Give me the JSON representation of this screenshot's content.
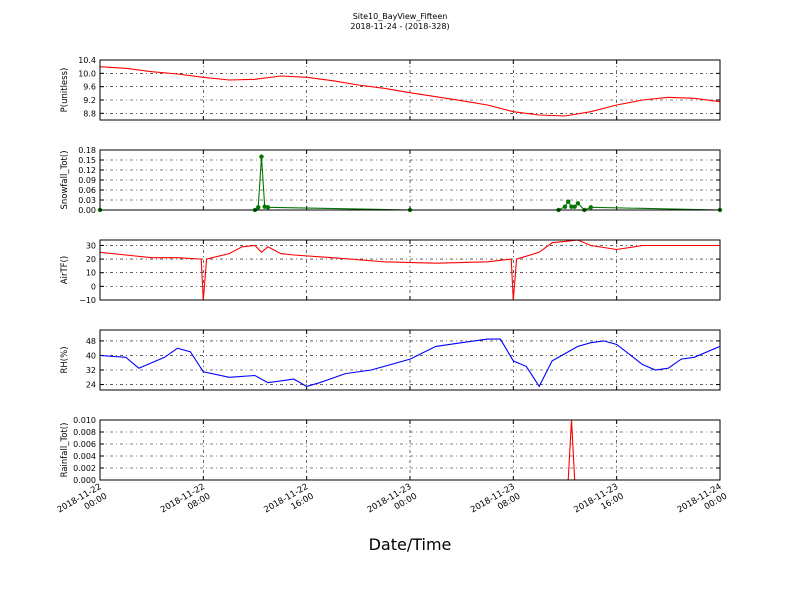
{
  "title": "Site10_BayView_Fifteen",
  "subtitle": "2018-11-24 - (2018-328)",
  "xlabel": "Date/Time",
  "x_ticks": [
    {
      "line1": "2018-11-22",
      "line2": "00:00"
    },
    {
      "line1": "2018-11-22",
      "line2": "08:00"
    },
    {
      "line1": "2018-11-22",
      "line2": "16:00"
    },
    {
      "line1": "2018-11-23",
      "line2": "00:00"
    },
    {
      "line1": "2018-11-23",
      "line2": "08:00"
    },
    {
      "line1": "2018-11-23",
      "line2": "16:00"
    },
    {
      "line1": "2018-11-24",
      "line2": "00:00"
    }
  ],
  "chart_data": [
    {
      "type": "line",
      "ylabel": "P(unitless)",
      "color": "#ff0000",
      "marker": false,
      "ylim": [
        8.6,
        10.4
      ],
      "yticks": [
        "8.8",
        "9.2",
        "9.6",
        "10.0",
        "10.4"
      ],
      "x": [
        "2018-11-22 00:00",
        "2018-11-22 02:00",
        "2018-11-22 04:00",
        "2018-11-22 06:00",
        "2018-11-22 08:00",
        "2018-11-22 10:00",
        "2018-11-22 12:00",
        "2018-11-22 14:00",
        "2018-11-22 16:00",
        "2018-11-22 18:00",
        "2018-11-22 20:00",
        "2018-11-22 22:00",
        "2018-11-23 00:00",
        "2018-11-23 02:00",
        "2018-11-23 04:00",
        "2018-11-23 06:00",
        "2018-11-23 08:00",
        "2018-11-23 10:00",
        "2018-11-23 12:00",
        "2018-11-23 14:00",
        "2018-11-23 16:00",
        "2018-11-23 18:00",
        "2018-11-23 20:00",
        "2018-11-23 22:00",
        "2018-11-24 00:00"
      ],
      "y": [
        10.2,
        10.15,
        10.05,
        9.98,
        9.88,
        9.8,
        9.82,
        9.92,
        9.88,
        9.78,
        9.65,
        9.55,
        9.42,
        9.3,
        9.18,
        9.05,
        8.85,
        8.75,
        8.72,
        8.85,
        9.05,
        9.2,
        9.28,
        9.25,
        9.15
      ]
    },
    {
      "type": "line",
      "ylabel": "Snowfall_Tot()",
      "color": "#007700",
      "marker": true,
      "ylim": [
        0,
        0.18
      ],
      "yticks": [
        "0.00",
        "0.03",
        "0.06",
        "0.09",
        "0.12",
        "0.15",
        "0.18"
      ],
      "x": [
        "2018-11-22 00:00",
        "2018-11-22 12:00",
        "2018-11-22 12:15",
        "2018-11-22 12:30",
        "2018-11-22 12:45",
        "2018-11-22 13:00",
        "2018-11-23 00:00",
        "2018-11-23 11:30",
        "2018-11-23 12:00",
        "2018-11-23 12:15",
        "2018-11-23 12:30",
        "2018-11-23 12:45",
        "2018-11-23 13:00",
        "2018-11-23 13:30",
        "2018-11-23 14:00",
        "2018-11-24 00:00"
      ],
      "y": [
        0,
        0,
        0.008,
        0.16,
        0.01,
        0.008,
        0,
        0,
        0.01,
        0.025,
        0.01,
        0.01,
        0.02,
        0,
        0.008,
        0
      ]
    },
    {
      "type": "line",
      "ylabel": "AirTF()",
      "color": "#ff0000",
      "marker": false,
      "ylim": [
        -10,
        34
      ],
      "yticks": [
        "−10",
        "0",
        "10",
        "20",
        "30"
      ],
      "x": [
        "2018-11-22 00:00",
        "2018-11-22 02:00",
        "2018-11-22 04:00",
        "2018-11-22 06:00",
        "2018-11-22 07:50",
        "2018-11-22 08:00",
        "2018-11-22 08:15",
        "2018-11-22 10:00",
        "2018-11-22 11:00",
        "2018-11-22 12:00",
        "2018-11-22 12:30",
        "2018-11-22 13:00",
        "2018-11-22 14:00",
        "2018-11-22 15:00",
        "2018-11-22 18:00",
        "2018-11-22 22:00",
        "2018-11-23 02:00",
        "2018-11-23 06:00",
        "2018-11-23 07:50",
        "2018-11-23 08:00",
        "2018-11-23 08:15",
        "2018-11-23 10:00",
        "2018-11-23 11:00",
        "2018-11-23 12:00",
        "2018-11-23 13:00",
        "2018-11-23 14:00",
        "2018-11-23 16:00",
        "2018-11-23 18:00",
        "2018-11-23 20:00",
        "2018-11-23 22:00",
        "2018-11-24 00:00"
      ],
      "y": [
        25,
        23,
        21,
        21,
        20,
        -10,
        20,
        24,
        29,
        30,
        25,
        29,
        24,
        23,
        21,
        18,
        17,
        18,
        20,
        -10,
        20,
        25,
        32,
        33,
        34,
        30,
        27,
        30,
        30,
        30,
        30
      ]
    },
    {
      "type": "line",
      "ylabel": "RH(%)",
      "color": "#0000ff",
      "marker": false,
      "ylim": [
        21,
        54
      ],
      "yticks": [
        "24",
        "32",
        "40",
        "48"
      ],
      "x": [
        "2018-11-22 00:00",
        "2018-11-22 02:00",
        "2018-11-22 03:00",
        "2018-11-22 05:00",
        "2018-11-22 06:00",
        "2018-11-22 07:00",
        "2018-11-22 08:00",
        "2018-11-22 10:00",
        "2018-11-22 12:00",
        "2018-11-22 13:00",
        "2018-11-22 15:00",
        "2018-11-22 16:00",
        "2018-11-22 17:00",
        "2018-11-22 19:00",
        "2018-11-22 21:00",
        "2018-11-23 00:00",
        "2018-11-23 02:00",
        "2018-11-23 04:00",
        "2018-11-23 06:00",
        "2018-11-23 07:00",
        "2018-11-23 08:00",
        "2018-11-23 09:00",
        "2018-11-23 10:00",
        "2018-11-23 11:00",
        "2018-11-23 12:00",
        "2018-11-23 13:00",
        "2018-11-23 14:00",
        "2018-11-23 15:00",
        "2018-11-23 16:00",
        "2018-11-23 18:00",
        "2018-11-23 19:00",
        "2018-11-23 20:00",
        "2018-11-23 21:00",
        "2018-11-23 22:00",
        "2018-11-24 00:00"
      ],
      "y": [
        40,
        39,
        33,
        39,
        44,
        42,
        31,
        28,
        29,
        25,
        27,
        23,
        25,
        30,
        32,
        38,
        45,
        47,
        49,
        49,
        37,
        34,
        23,
        37,
        41,
        45,
        47,
        48,
        46,
        35,
        32,
        33,
        38,
        39,
        45
      ]
    },
    {
      "type": "line",
      "ylabel": "Rainfall_Tot()",
      "color": "#ff0000",
      "marker": false,
      "ylim": [
        0,
        0.01
      ],
      "yticks": [
        "0.000",
        "0.002",
        "0.004",
        "0.006",
        "0.008",
        "0.010"
      ],
      "x": [
        "2018-11-22 00:00",
        "2018-11-23 12:15",
        "2018-11-23 12:30",
        "2018-11-23 12:45",
        "2018-11-24 00:00"
      ],
      "y": [
        0,
        0,
        0.01,
        0,
        0
      ]
    }
  ]
}
